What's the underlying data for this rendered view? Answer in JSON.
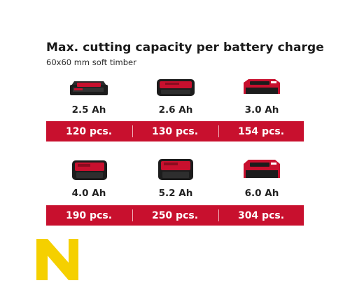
{
  "title": "Max. cutting capacity per battery charge",
  "subtitle": "60x60 mm soft timber",
  "batteries": [
    {
      "capacity": "2.5 Ah",
      "pieces": "120 pcs."
    },
    {
      "capacity": "2.6 Ah",
      "pieces": "130 pcs."
    },
    {
      "capacity": "3.0 Ah",
      "pieces": "154 pcs."
    },
    {
      "capacity": "4.0 Ah",
      "pieces": "190 pcs."
    },
    {
      "capacity": "5.2 Ah",
      "pieces": "250 pcs."
    },
    {
      "capacity": "6.0 Ah",
      "pieces": "304 pcs."
    }
  ],
  "colors": {
    "accent_red": "#c8102e",
    "battery_black": "#1f1f1f",
    "logo_yellow": "#f5d000"
  },
  "icons": [
    "battery-pack-icon",
    "brand-logo-icon"
  ]
}
